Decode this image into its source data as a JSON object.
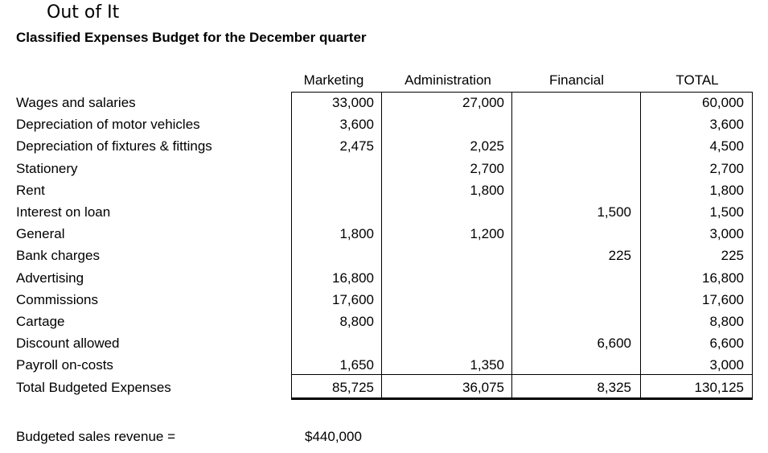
{
  "title": "Out of It",
  "subtitle": "Classified Expenses Budget for the December quarter",
  "columns": [
    "Marketing",
    "Administration",
    "Financial",
    "TOTAL"
  ],
  "rows": [
    {
      "label": "Wages and salaries",
      "marketing": "33,000",
      "administration": "27,000",
      "financial": "",
      "total": "60,000"
    },
    {
      "label": "Depreciation of motor vehicles",
      "marketing": "3,600",
      "administration": "",
      "financial": "",
      "total": "3,600"
    },
    {
      "label": "Depreciation of fixtures & fittings",
      "marketing": "2,475",
      "administration": "2,025",
      "financial": "",
      "total": "4,500"
    },
    {
      "label": "Stationery",
      "marketing": "",
      "administration": "2,700",
      "financial": "",
      "total": "2,700"
    },
    {
      "label": "Rent",
      "marketing": "",
      "administration": "1,800",
      "financial": "",
      "total": "1,800"
    },
    {
      "label": "Interest on loan",
      "marketing": "",
      "administration": "",
      "financial": "1,500",
      "total": "1,500"
    },
    {
      "label": "General",
      "marketing": "1,800",
      "administration": "1,200",
      "financial": "",
      "total": "3,000"
    },
    {
      "label": "Bank charges",
      "marketing": "",
      "administration": "",
      "financial": "225",
      "total": "225"
    },
    {
      "label": "Advertising",
      "marketing": "16,800",
      "administration": "",
      "financial": "",
      "total": "16,800"
    },
    {
      "label": "Commissions",
      "marketing": "17,600",
      "administration": "",
      "financial": "",
      "total": "17,600"
    },
    {
      "label": "Cartage",
      "marketing": "8,800",
      "administration": "",
      "financial": "",
      "total": "8,800"
    },
    {
      "label": "Discount allowed",
      "marketing": "",
      "administration": "",
      "financial": "6,600",
      "total": "6,600"
    },
    {
      "label": "Payroll on-costs",
      "marketing": "1,650",
      "administration": "1,350",
      "financial": "",
      "total": "3,000"
    }
  ],
  "totals": {
    "label": "Total Budgeted Expenses",
    "marketing": "85,725",
    "administration": "36,075",
    "financial": "8,325",
    "total": "130,125"
  },
  "revenue": {
    "label": "Budgeted sales revenue =",
    "value": "$440,000"
  }
}
